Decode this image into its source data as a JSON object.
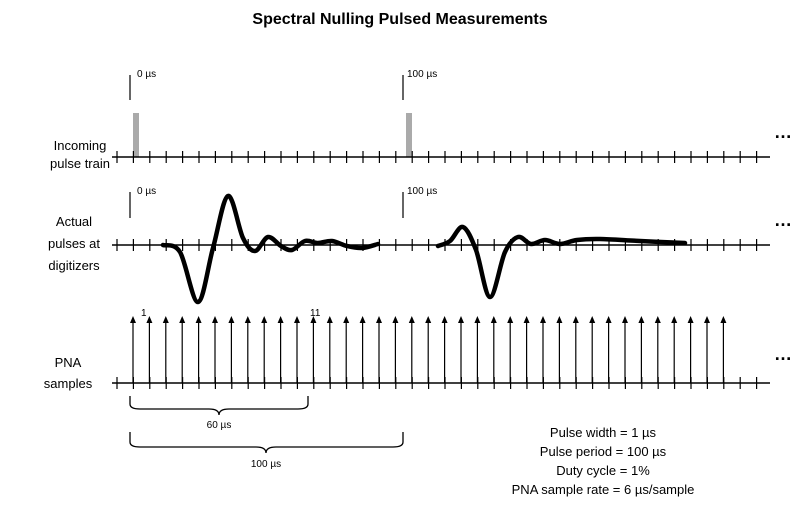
{
  "title": "Spectral Nulling Pulsed Measurements",
  "rows": [
    {
      "label": [
        "Incoming",
        "pulse train"
      ],
      "markers": [
        "0 µs",
        "100 µs"
      ]
    },
    {
      "label": [
        "Actual",
        "pulses at",
        "digitizers"
      ],
      "markers": [
        "0 µs",
        "100 µs"
      ]
    },
    {
      "label": [
        "PNA",
        "samples"
      ],
      "sample_labels": [
        "1",
        "11"
      ]
    }
  ],
  "ellipsis": "…",
  "brackets": [
    "60 µs",
    "100 µs"
  ],
  "notes": [
    "Pulse width = 1 µs",
    "Pulse period = 100 µs",
    "Duty cycle = 1%",
    "PNA sample rate = 6 µs/sample"
  ]
}
